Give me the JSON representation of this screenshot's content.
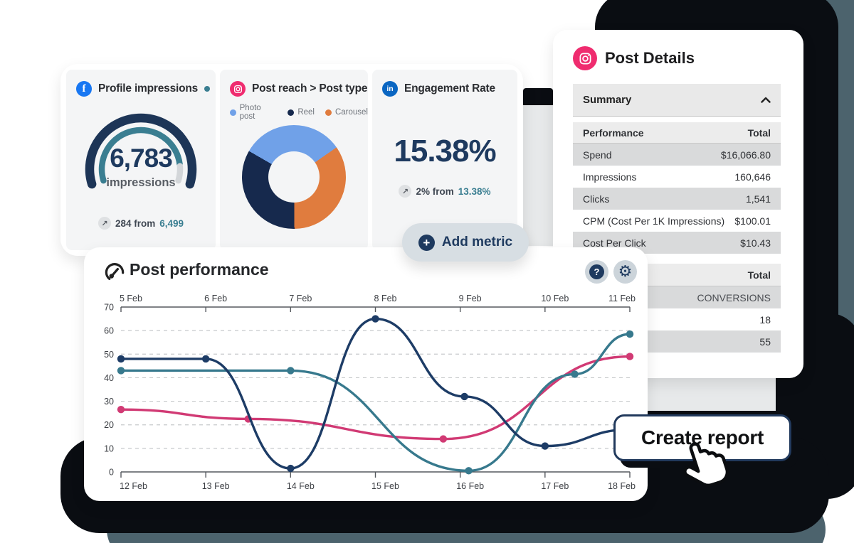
{
  "background": {
    "accent_teal": "#4c636d",
    "shadow_black": "#0a0d12",
    "backdrop_gray": "#e7e9ea"
  },
  "icons": {
    "facebook_glyph": "f",
    "linkedin_glyph": "in",
    "plus_glyph": "+",
    "help_glyph": "?",
    "gear_glyph": "⚙",
    "trend_glyph": "↗"
  },
  "metrics_panel": {
    "profile_impressions": {
      "icon": "facebook-icon",
      "title": "Profile impressions",
      "value": "6,783",
      "value_label": "impressions",
      "delta_prefix": "284 from",
      "delta_value": "6,499"
    },
    "post_reach": {
      "icon": "instagram-icon",
      "title": "Post reach > Post type",
      "legend": [
        {
          "label": "Photo post",
          "color": "#70a1e8"
        },
        {
          "label": "Reel",
          "color": "#16294d"
        },
        {
          "label": "Carousel",
          "color": "#e07c3e"
        }
      ]
    },
    "engagement_rate": {
      "icon": "linkedin-icon",
      "title": "Engagement Rate",
      "value": "15.38%",
      "delta_prefix": "2% from",
      "delta_value": "13.38%"
    },
    "add_metric_label": "Add metric"
  },
  "post_details": {
    "icon": "instagram-icon",
    "title": "Post Details",
    "section_label": "Summary",
    "performance_table": {
      "columns": [
        "Performance",
        "Total"
      ],
      "rows": [
        [
          "Spend",
          "$16,066.80"
        ],
        [
          "Impressions",
          "160,646"
        ],
        [
          "Clicks",
          "1,541"
        ],
        [
          "CPM (Cost Per 1K Impressions)",
          "$100.01"
        ],
        [
          "Cost Per Click",
          "$10.43"
        ]
      ]
    },
    "secondary_table": {
      "header": "Total",
      "rows": [
        "CONVERSIONS",
        "18",
        "55"
      ]
    }
  },
  "post_performance": {
    "title": "Post performance"
  },
  "create_report_label": "Create report",
  "chart_data": [
    {
      "type": "gauge",
      "title": "Profile impressions",
      "value": 6783,
      "value_display": "6,783",
      "unit": "impressions",
      "delta": 284,
      "previous": 6499,
      "fraction": 0.885,
      "track_color": "#1d3557",
      "progress_color": "#3a7e91",
      "remainder_color": "#d3d6d9"
    },
    {
      "type": "pie",
      "title": "Post reach > Post type",
      "categories": [
        "Photo post",
        "Reel",
        "Carousel"
      ],
      "values_pct": [
        32,
        33.5,
        34.5
      ],
      "colors": [
        "#70a1e8",
        "#16294d",
        "#e07c3e"
      ],
      "start_angle_deg": -60,
      "hole": true,
      "conic_slices": [
        {
          "label": "Photo post",
          "color": "#70a1e8",
          "pct": 32
        },
        {
          "label": "Carousel",
          "color": "#e07c3e",
          "pct": 34.5
        },
        {
          "label": "Reel",
          "color": "#16294d",
          "pct": 33.5
        }
      ]
    },
    {
      "type": "line",
      "title": "Post performance",
      "x_axis_top_labels": [
        "5 Feb",
        "6 Feb",
        "7 Feb",
        "8 Feb",
        "9 Feb",
        "10 Feb",
        "11 Feb"
      ],
      "x_axis_bottom_labels": [
        "12 Feb",
        "13 Feb",
        "14 Feb",
        "15 Feb",
        "16 Feb",
        "17 Feb",
        "18 Feb"
      ],
      "y_ticks": [
        0,
        10,
        20,
        30,
        40,
        50,
        60,
        70
      ],
      "ylim": [
        0,
        70
      ],
      "x_domain": [
        0,
        6
      ],
      "grid": "dashed-horizontal",
      "legend_position": "none",
      "series": [
        {
          "name": "series-pink",
          "color": "#d13a74",
          "points": [
            [
              0,
              26.5
            ],
            [
              1.5,
              22.5
            ],
            [
              3.8,
              14
            ],
            [
              6,
              49
            ]
          ],
          "dots": [
            [
              0,
              26.5
            ],
            [
              1.5,
              22.5
            ],
            [
              3.8,
              14
            ],
            [
              6,
              49
            ]
          ]
        },
        {
          "name": "series-teal",
          "color": "#37798d",
          "points": [
            [
              0,
              43
            ],
            [
              2,
              43
            ],
            [
              4.1,
              0.5
            ],
            [
              5.35,
              41.5
            ],
            [
              6,
              58.5
            ]
          ],
          "dots": [
            [
              0,
              43
            ],
            [
              2,
              43
            ],
            [
              4.1,
              0.5
            ],
            [
              5.35,
              41.5
            ],
            [
              6,
              58.5
            ]
          ]
        },
        {
          "name": "series-navy",
          "color": "#1d3c66",
          "points": [
            [
              0,
              48
            ],
            [
              1,
              48
            ],
            [
              2,
              1.5
            ],
            [
              3,
              65
            ],
            [
              4.05,
              32
            ],
            [
              5,
              11
            ],
            [
              6,
              18
            ]
          ],
          "dots": [
            [
              0,
              48
            ],
            [
              1,
              48
            ],
            [
              2,
              1.5
            ],
            [
              3,
              65
            ],
            [
              4.05,
              32
            ],
            [
              5,
              11
            ]
          ]
        }
      ]
    }
  ]
}
